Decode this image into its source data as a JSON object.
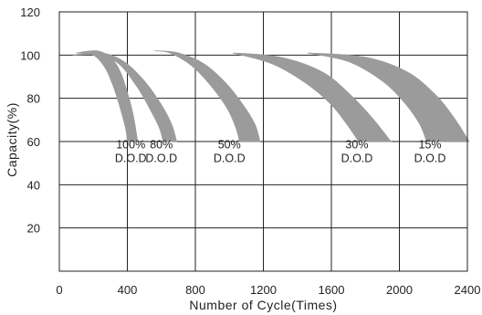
{
  "chart_data": {
    "type": "area",
    "xlabel": "Number of Cycle(Times)",
    "ylabel": "Capacity(%)",
    "xlim": [
      0,
      2400
    ],
    "ylim": [
      0,
      120
    ],
    "x_ticks": [
      0,
      400,
      800,
      1200,
      1600,
      2000,
      2400
    ],
    "y_ticks": [
      20,
      40,
      60,
      80,
      100,
      120
    ],
    "grid": true,
    "band_color": "#9b9b9b",
    "series": [
      {
        "label_lines": [
          "100%",
          "D.O.D"
        ],
        "label_anchor": [
          420,
          62
        ],
        "upper": [
          [
            100,
            101
          ],
          [
            220,
            102
          ],
          [
            300,
            99
          ],
          [
            360,
            92
          ],
          [
            410,
            80
          ],
          [
            440,
            70
          ],
          [
            460,
            60
          ]
        ],
        "lower": [
          [
            100,
            101
          ],
          [
            200,
            100
          ],
          [
            270,
            94
          ],
          [
            320,
            85
          ],
          [
            360,
            75
          ],
          [
            390,
            66
          ],
          [
            400,
            60
          ]
        ]
      },
      {
        "label_lines": [
          "80%",
          "D.O.D"
        ],
        "label_anchor": [
          600,
          62
        ],
        "upper": [
          [
            80,
            100
          ],
          [
            250,
            101
          ],
          [
            380,
            97
          ],
          [
            500,
            88
          ],
          [
            600,
            77
          ],
          [
            660,
            68
          ],
          [
            690,
            60
          ]
        ],
        "lower": [
          [
            80,
            100
          ],
          [
            230,
            100
          ],
          [
            350,
            96
          ],
          [
            460,
            85
          ],
          [
            540,
            74
          ],
          [
            590,
            66
          ],
          [
            610,
            60
          ]
        ]
      },
      {
        "label_lines": [
          "50%",
          "D.O.D"
        ],
        "label_anchor": [
          1000,
          62
        ],
        "upper": [
          [
            560,
            102
          ],
          [
            700,
            101
          ],
          [
            850,
            96
          ],
          [
            980,
            87
          ],
          [
            1080,
            77
          ],
          [
            1150,
            68
          ],
          [
            1180,
            60
          ]
        ],
        "lower": [
          [
            560,
            102
          ],
          [
            650,
            101
          ],
          [
            780,
            95
          ],
          [
            900,
            85
          ],
          [
            990,
            75
          ],
          [
            1040,
            66
          ],
          [
            1060,
            60
          ]
        ]
      },
      {
        "label_lines": [
          "30%",
          "D.O.D"
        ],
        "label_anchor": [
          1750,
          62
        ],
        "upper": [
          [
            1020,
            101
          ],
          [
            1300,
            99
          ],
          [
            1550,
            92
          ],
          [
            1720,
            81
          ],
          [
            1850,
            70
          ],
          [
            1950,
            60
          ]
        ],
        "lower": [
          [
            1020,
            101
          ],
          [
            1250,
            96
          ],
          [
            1450,
            87
          ],
          [
            1600,
            77
          ],
          [
            1700,
            67
          ],
          [
            1760,
            60
          ]
        ]
      },
      {
        "label_lines": [
          "15%",
          "D.O.D"
        ],
        "label_anchor": [
          2180,
          62
        ],
        "upper": [
          [
            1460,
            101
          ],
          [
            1800,
            99
          ],
          [
            2050,
            92
          ],
          [
            2220,
            81
          ],
          [
            2330,
            70
          ],
          [
            2410,
            60
          ]
        ],
        "lower": [
          [
            1460,
            101
          ],
          [
            1700,
            97
          ],
          [
            1900,
            88
          ],
          [
            2030,
            78
          ],
          [
            2120,
            68
          ],
          [
            2160,
            60
          ]
        ]
      }
    ]
  }
}
